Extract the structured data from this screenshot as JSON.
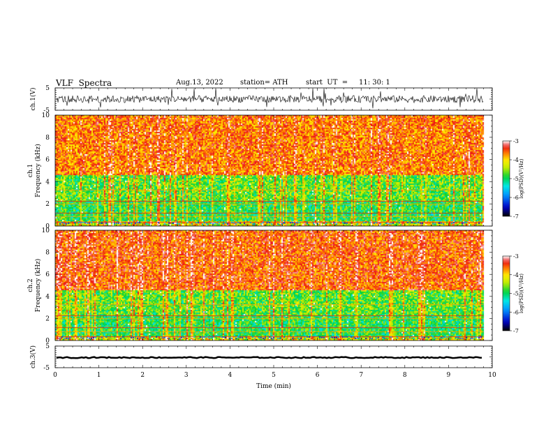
{
  "header": {
    "title": "VLF  Spectra",
    "date": "Aug.13, 2022",
    "station": "station= ATH",
    "start": "start  UT  =     11: 30: 1"
  },
  "chart_data": {
    "type": "heatmap",
    "xlabel": "Time  (min)",
    "xlim": [
      0,
      10
    ],
    "xticks": [
      0,
      1,
      2,
      3,
      4,
      5,
      6,
      7,
      8,
      9,
      10
    ],
    "data_end_min": 9.8,
    "panels": [
      {
        "name": "ch1-waveform",
        "type": "line",
        "ylabel": "ch.1(V)",
        "ylim": [
          -5,
          5
        ],
        "yticks": [
          "5",
          "-5"
        ]
      },
      {
        "name": "ch1-spectrogram",
        "type": "heatmap",
        "ylabel_line1": "ch.1",
        "ylabel_line2": "Frequency  (kHz)",
        "ylim": [
          0,
          10
        ],
        "yticks": [
          0,
          2,
          4,
          6,
          8,
          10
        ],
        "colorbar": {
          "label": "log(PSD)(V²/Hz)",
          "range": [
            -7,
            -3
          ],
          "ticks": [
            "-3",
            "-4",
            "-5",
            "-6",
            "-7"
          ]
        }
      },
      {
        "name": "ch2-spectrogram",
        "type": "heatmap",
        "ylabel_line1": "ch.2",
        "ylabel_line2": "Frequency  (kHz)",
        "ylim": [
          0,
          10
        ],
        "yticks": [
          0,
          2,
          4,
          6,
          8,
          10
        ],
        "colorbar": {
          "label": "log(PSD)(V²/Hz)",
          "range": [
            -7,
            -3
          ],
          "ticks": [
            "-3",
            "-4",
            "-5",
            "-6",
            "-7"
          ]
        }
      },
      {
        "name": "ch3-waveform",
        "type": "line",
        "ylabel": "ch.3(V)",
        "ylim": [
          -5,
          5
        ],
        "yticks": [
          "5",
          "-5"
        ]
      }
    ]
  }
}
